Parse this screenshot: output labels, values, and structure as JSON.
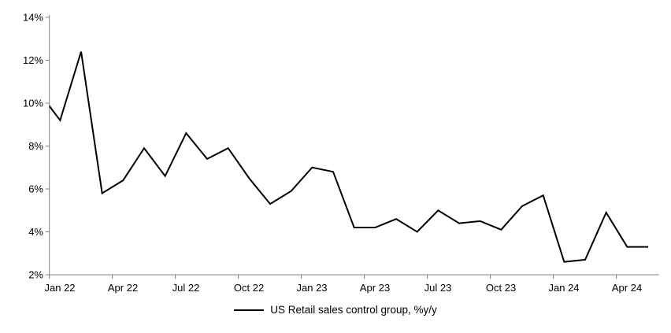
{
  "chart_data": {
    "type": "line",
    "title": "",
    "xlabel": "",
    "ylabel": "",
    "grid": false,
    "background_color": "#ffffff",
    "axis_color": "#808080",
    "x": [
      "Dec-21",
      "Jan-22",
      "Feb-22",
      "Mar-22",
      "Apr-22",
      "May-22",
      "Jun-22",
      "Jul-22",
      "Aug-22",
      "Sep-22",
      "Oct-22",
      "Nov-22",
      "Dec-22",
      "Jan-23",
      "Feb-23",
      "Mar-23",
      "Apr-23",
      "May-23",
      "Jun-23",
      "Jul-23",
      "Aug-23",
      "Sep-23",
      "Oct-23",
      "Nov-23",
      "Dec-23",
      "Jan-24",
      "Feb-24",
      "Mar-24",
      "Apr-24",
      "May-24"
    ],
    "series": [
      {
        "name": "US Retail sales control group, %y/y",
        "color": "#000000",
        "values": [
          10.5,
          9.2,
          12.4,
          5.8,
          6.4,
          7.9,
          6.6,
          8.6,
          7.4,
          7.9,
          6.5,
          5.3,
          5.9,
          7.0,
          6.8,
          4.2,
          4.2,
          4.6,
          4.0,
          5.0,
          4.4,
          4.5,
          4.1,
          5.2,
          5.7,
          2.6,
          2.7,
          4.9,
          3.3,
          3.3
        ]
      }
    ],
    "first_point_clipped_at_left_axis": true,
    "x_axis": {
      "tick_labels": [
        "Jan 22",
        "Apr 22",
        "Jul 22",
        "Oct 22",
        "Jan 23",
        "Apr 23",
        "Jul 23",
        "Oct 23",
        "Jan 24",
        "Apr 24"
      ],
      "ticks_every_n_months": 3
    },
    "y_axis": {
      "min": 2,
      "max": 14,
      "ticks": [
        2,
        4,
        6,
        8,
        10,
        12,
        14
      ],
      "suffix": "%"
    },
    "legend": {
      "position": "bottom-center",
      "label": "US Retail sales control group, %y/y"
    }
  }
}
